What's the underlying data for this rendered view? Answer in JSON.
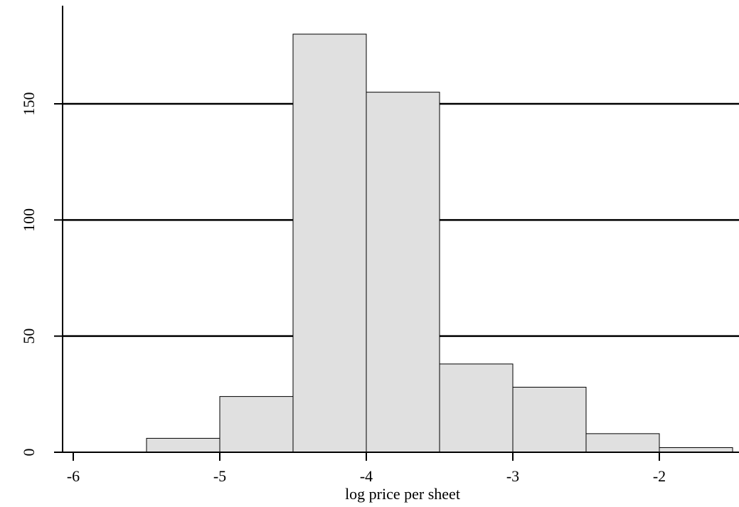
{
  "chart_data": {
    "type": "bar",
    "title": "",
    "xlabel": "log price per sheet",
    "ylabel": "",
    "xlim": [
      -6.1,
      -1.5
    ],
    "ylim": [
      0,
      180
    ],
    "grid": "horizontal",
    "bar_color": "#e0e0e0",
    "x_ticks": [
      -6,
      -5,
      -4,
      -3,
      -2
    ],
    "x_tick_labels": [
      "-6",
      "-5",
      "-4",
      "-3",
      "-2"
    ],
    "y_ticks": [
      0,
      50,
      100,
      150
    ],
    "y_tick_labels": [
      "0",
      "50",
      "100",
      "150"
    ],
    "bins": [
      {
        "start": -6.0,
        "end": -5.5,
        "count": 0
      },
      {
        "start": -5.5,
        "end": -5.0,
        "count": 6
      },
      {
        "start": -5.0,
        "end": -4.5,
        "count": 24
      },
      {
        "start": -4.5,
        "end": -4.0,
        "count": 180
      },
      {
        "start": -4.0,
        "end": -3.5,
        "count": 155
      },
      {
        "start": -3.5,
        "end": -3.0,
        "count": 38
      },
      {
        "start": -3.0,
        "end": -2.5,
        "count": 28
      },
      {
        "start": -2.5,
        "end": -2.0,
        "count": 8
      },
      {
        "start": -2.0,
        "end": -1.5,
        "count": 2
      }
    ]
  }
}
